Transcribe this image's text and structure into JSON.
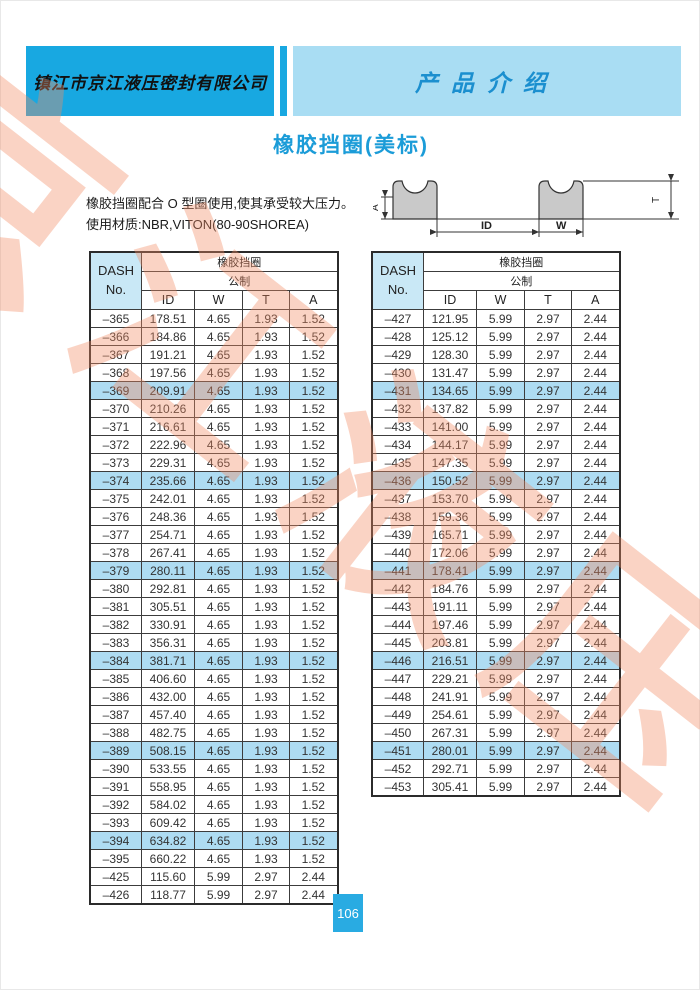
{
  "header": {
    "company": "镇江市京江液压密封有限公司",
    "section": "产品介绍"
  },
  "title": "橡胶挡圈(美标)",
  "description": {
    "line1": "橡胶挡圈配合 O 型圈使用,使其承受较大压力。",
    "line2": "使用材质:NBR,VITON(80-90SHOREA)"
  },
  "diagram_labels": {
    "a": "A",
    "id": "ID",
    "w": "W",
    "t": "T"
  },
  "table_headers": {
    "dash_line1": "DASH",
    "dash_line2": "No.",
    "group": "橡胶挡圈",
    "subgroup": "公制",
    "columns": [
      "ID",
      "W",
      "T",
      "A"
    ]
  },
  "left_table": {
    "rows": [
      {
        "dash": "–365",
        "id": "178.51",
        "w": "4.65",
        "t": "1.93",
        "a": "1.52",
        "hl": false
      },
      {
        "dash": "–366",
        "id": "184.86",
        "w": "4.65",
        "t": "1.93",
        "a": "1.52",
        "hl": false
      },
      {
        "dash": "–367",
        "id": "191.21",
        "w": "4.65",
        "t": "1.93",
        "a": "1.52",
        "hl": false
      },
      {
        "dash": "–368",
        "id": "197.56",
        "w": "4.65",
        "t": "1.93",
        "a": "1.52",
        "hl": false
      },
      {
        "dash": "–369",
        "id": "209.91",
        "w": "4.65",
        "t": "1.93",
        "a": "1.52",
        "hl": true
      },
      {
        "dash": "–370",
        "id": "210.26",
        "w": "4.65",
        "t": "1.93",
        "a": "1.52",
        "hl": false
      },
      {
        "dash": "–371",
        "id": "216.61",
        "w": "4.65",
        "t": "1.93",
        "a": "1.52",
        "hl": false
      },
      {
        "dash": "–372",
        "id": "222.96",
        "w": "4.65",
        "t": "1.93",
        "a": "1.52",
        "hl": false
      },
      {
        "dash": "–373",
        "id": "229.31",
        "w": "4.65",
        "t": "1.93",
        "a": "1.52",
        "hl": false
      },
      {
        "dash": "–374",
        "id": "235.66",
        "w": "4.65",
        "t": "1.93",
        "a": "1.52",
        "hl": true
      },
      {
        "dash": "–375",
        "id": "242.01",
        "w": "4.65",
        "t": "1.93",
        "a": "1.52",
        "hl": false
      },
      {
        "dash": "–376",
        "id": "248.36",
        "w": "4.65",
        "t": "1.93",
        "a": "1.52",
        "hl": false
      },
      {
        "dash": "–377",
        "id": "254.71",
        "w": "4.65",
        "t": "1.93",
        "a": "1.52",
        "hl": false
      },
      {
        "dash": "–378",
        "id": "267.41",
        "w": "4.65",
        "t": "1.93",
        "a": "1.52",
        "hl": false
      },
      {
        "dash": "–379",
        "id": "280.11",
        "w": "4.65",
        "t": "1.93",
        "a": "1.52",
        "hl": true
      },
      {
        "dash": "–380",
        "id": "292.81",
        "w": "4.65",
        "t": "1.93",
        "a": "1.52",
        "hl": false
      },
      {
        "dash": "–381",
        "id": "305.51",
        "w": "4.65",
        "t": "1.93",
        "a": "1.52",
        "hl": false
      },
      {
        "dash": "–382",
        "id": "330.91",
        "w": "4.65",
        "t": "1.93",
        "a": "1.52",
        "hl": false
      },
      {
        "dash": "–383",
        "id": "356.31",
        "w": "4.65",
        "t": "1.93",
        "a": "1.52",
        "hl": false
      },
      {
        "dash": "–384",
        "id": "381.71",
        "w": "4.65",
        "t": "1.93",
        "a": "1.52",
        "hl": true
      },
      {
        "dash": "–385",
        "id": "406.60",
        "w": "4.65",
        "t": "1.93",
        "a": "1.52",
        "hl": false
      },
      {
        "dash": "–386",
        "id": "432.00",
        "w": "4.65",
        "t": "1.93",
        "a": "1.52",
        "hl": false
      },
      {
        "dash": "–387",
        "id": "457.40",
        "w": "4.65",
        "t": "1.93",
        "a": "1.52",
        "hl": false
      },
      {
        "dash": "–388",
        "id": "482.75",
        "w": "4.65",
        "t": "1.93",
        "a": "1.52",
        "hl": false
      },
      {
        "dash": "–389",
        "id": "508.15",
        "w": "4.65",
        "t": "1.93",
        "a": "1.52",
        "hl": true
      },
      {
        "dash": "–390",
        "id": "533.55",
        "w": "4.65",
        "t": "1.93",
        "a": "1.52",
        "hl": false
      },
      {
        "dash": "–391",
        "id": "558.95",
        "w": "4.65",
        "t": "1.93",
        "a": "1.52",
        "hl": false
      },
      {
        "dash": "–392",
        "id": "584.02",
        "w": "4.65",
        "t": "1.93",
        "a": "1.52",
        "hl": false
      },
      {
        "dash": "–393",
        "id": "609.42",
        "w": "4.65",
        "t": "1.93",
        "a": "1.52",
        "hl": false
      },
      {
        "dash": "–394",
        "id": "634.82",
        "w": "4.65",
        "t": "1.93",
        "a": "1.52",
        "hl": true
      },
      {
        "dash": "–395",
        "id": "660.22",
        "w": "4.65",
        "t": "1.93",
        "a": "1.52",
        "hl": false
      },
      {
        "dash": "–425",
        "id": "115.60",
        "w": "5.99",
        "t": "2.97",
        "a": "2.44",
        "hl": false
      },
      {
        "dash": "–426",
        "id": "118.77",
        "w": "5.99",
        "t": "2.97",
        "a": "2.44",
        "hl": false
      }
    ]
  },
  "right_table": {
    "rows": [
      {
        "dash": "–427",
        "id": "121.95",
        "w": "5.99",
        "t": "2.97",
        "a": "2.44",
        "hl": false
      },
      {
        "dash": "–428",
        "id": "125.12",
        "w": "5.99",
        "t": "2.97",
        "a": "2.44",
        "hl": false
      },
      {
        "dash": "–429",
        "id": "128.30",
        "w": "5.99",
        "t": "2.97",
        "a": "2.44",
        "hl": false
      },
      {
        "dash": "–430",
        "id": "131.47",
        "w": "5.99",
        "t": "2.97",
        "a": "2.44",
        "hl": false
      },
      {
        "dash": "–431",
        "id": "134.65",
        "w": "5.99",
        "t": "2.97",
        "a": "2.44",
        "hl": true
      },
      {
        "dash": "–432",
        "id": "137.82",
        "w": "5.99",
        "t": "2.97",
        "a": "2.44",
        "hl": false
      },
      {
        "dash": "–433",
        "id": "141.00",
        "w": "5.99",
        "t": "2.97",
        "a": "2.44",
        "hl": false
      },
      {
        "dash": "–434",
        "id": "144.17",
        "w": "5.99",
        "t": "2.97",
        "a": "2.44",
        "hl": false
      },
      {
        "dash": "–435",
        "id": "147.35",
        "w": "5.99",
        "t": "2.97",
        "a": "2.44",
        "hl": false
      },
      {
        "dash": "–436",
        "id": "150.52",
        "w": "5.99",
        "t": "2.97",
        "a": "2.44",
        "hl": true
      },
      {
        "dash": "–437",
        "id": "153.70",
        "w": "5.99",
        "t": "2.97",
        "a": "2.44",
        "hl": false
      },
      {
        "dash": "–438",
        "id": "159.36",
        "w": "5.99",
        "t": "2.97",
        "a": "2.44",
        "hl": false
      },
      {
        "dash": "–439",
        "id": "165.71",
        "w": "5.99",
        "t": "2.97",
        "a": "2.44",
        "hl": false
      },
      {
        "dash": "–440",
        "id": "172.06",
        "w": "5.99",
        "t": "2.97",
        "a": "2.44",
        "hl": false
      },
      {
        "dash": "–441",
        "id": "178.41",
        "w": "5.99",
        "t": "2.97",
        "a": "2.44",
        "hl": true
      },
      {
        "dash": "–442",
        "id": "184.76",
        "w": "5.99",
        "t": "2.97",
        "a": "2.44",
        "hl": false
      },
      {
        "dash": "–443",
        "id": "191.11",
        "w": "5.99",
        "t": "2.97",
        "a": "2.44",
        "hl": false
      },
      {
        "dash": "–444",
        "id": "197.46",
        "w": "5.99",
        "t": "2.97",
        "a": "2.44",
        "hl": false
      },
      {
        "dash": "–445",
        "id": "203.81",
        "w": "5.99",
        "t": "2.97",
        "a": "2.44",
        "hl": false
      },
      {
        "dash": "–446",
        "id": "216.51",
        "w": "5.99",
        "t": "2.97",
        "a": "2.44",
        "hl": true
      },
      {
        "dash": "–447",
        "id": "229.21",
        "w": "5.99",
        "t": "2.97",
        "a": "2.44",
        "hl": false
      },
      {
        "dash": "–448",
        "id": "241.91",
        "w": "5.99",
        "t": "2.97",
        "a": "2.44",
        "hl": false
      },
      {
        "dash": "–449",
        "id": "254.61",
        "w": "5.99",
        "t": "2.97",
        "a": "2.44",
        "hl": false
      },
      {
        "dash": "–450",
        "id": "267.31",
        "w": "5.99",
        "t": "2.97",
        "a": "2.44",
        "hl": false
      },
      {
        "dash": "–451",
        "id": "280.01",
        "w": "5.99",
        "t": "2.97",
        "a": "2.44",
        "hl": true
      },
      {
        "dash": "–452",
        "id": "292.71",
        "w": "5.99",
        "t": "2.97",
        "a": "2.44",
        "hl": false
      },
      {
        "dash": "–453",
        "id": "305.41",
        "w": "5.99",
        "t": "2.97",
        "a": "2.44",
        "hl": false
      }
    ]
  },
  "page_number": "106",
  "watermark_text": "京江液压",
  "colors": {
    "header_dark_blue": "#18a8e1",
    "header_light_blue": "#a9ddf3",
    "section_text_blue": "#1b8fcf",
    "title_blue": "#1b9cd8",
    "row_highlight": "#aedcf2",
    "dash_header_bg": "#c9e8f6",
    "page_number_bg": "#29abe2",
    "watermark_salmon": "#f28c64",
    "table_border": "#3c3c3c",
    "diagram_gray": "#c9c9c9"
  }
}
